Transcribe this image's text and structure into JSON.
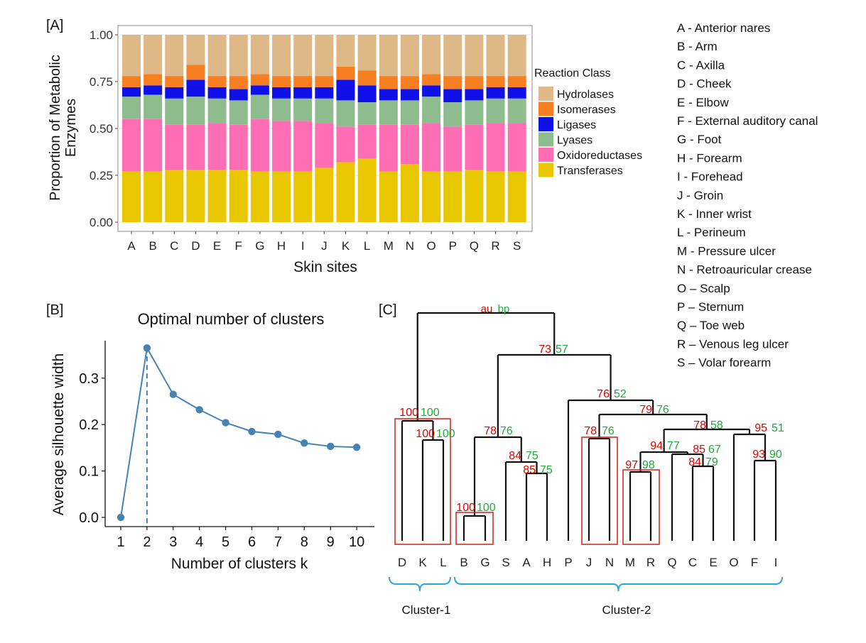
{
  "panels": {
    "A": "[A]",
    "B": "[B]",
    "C": "[C]"
  },
  "chart_data": [
    {
      "type": "bar",
      "stacked": true,
      "panel": "[A]",
      "xlabel": "Skin sites",
      "ylabel": "Proportion of Metabolic Enzymes",
      "ylabel_lines": [
        "Proportion of Metabolic",
        "Enzymes"
      ],
      "ylim": [
        0,
        1
      ],
      "yticks": [
        "0.00",
        "0.25",
        "0.50",
        "0.75",
        "1.00"
      ],
      "categories": [
        "A",
        "B",
        "C",
        "D",
        "E",
        "F",
        "G",
        "H",
        "I",
        "J",
        "K",
        "L",
        "M",
        "N",
        "O",
        "P",
        "Q",
        "R",
        "S"
      ],
      "legend_title": "Reaction Class",
      "legend_position": "right",
      "series": [
        {
          "name": "Transferases",
          "color": "#E8C700",
          "values": [
            0.27,
            0.27,
            0.28,
            0.28,
            0.28,
            0.28,
            0.27,
            0.27,
            0.27,
            0.29,
            0.32,
            0.34,
            0.27,
            0.31,
            0.27,
            0.27,
            0.28,
            0.27,
            0.27
          ]
        },
        {
          "name": "Oxidoreductases",
          "color": "#FF6EB4",
          "values": [
            0.28,
            0.28,
            0.24,
            0.24,
            0.25,
            0.24,
            0.28,
            0.27,
            0.27,
            0.24,
            0.19,
            0.18,
            0.25,
            0.21,
            0.26,
            0.24,
            0.24,
            0.26,
            0.26
          ]
        },
        {
          "name": "Lyases",
          "color": "#8FBC8F",
          "values": [
            0.12,
            0.13,
            0.14,
            0.15,
            0.13,
            0.13,
            0.13,
            0.12,
            0.12,
            0.13,
            0.14,
            0.12,
            0.13,
            0.13,
            0.14,
            0.13,
            0.13,
            0.13,
            0.13
          ]
        },
        {
          "name": "Ligases",
          "color": "#1010E8",
          "values": [
            0.05,
            0.05,
            0.06,
            0.09,
            0.06,
            0.06,
            0.05,
            0.06,
            0.06,
            0.06,
            0.11,
            0.09,
            0.06,
            0.06,
            0.06,
            0.07,
            0.06,
            0.06,
            0.06
          ]
        },
        {
          "name": "Isomerases",
          "color": "#F77E21",
          "values": [
            0.06,
            0.06,
            0.06,
            0.08,
            0.06,
            0.07,
            0.06,
            0.06,
            0.06,
            0.06,
            0.07,
            0.08,
            0.07,
            0.07,
            0.06,
            0.07,
            0.07,
            0.06,
            0.06
          ]
        },
        {
          "name": "Hydrolases",
          "color": "#DEB887",
          "values": [
            0.22,
            0.21,
            0.22,
            0.16,
            0.22,
            0.22,
            0.21,
            0.22,
            0.22,
            0.22,
            0.17,
            0.19,
            0.22,
            0.22,
            0.21,
            0.22,
            0.22,
            0.22,
            0.22
          ]
        }
      ],
      "legend_order": [
        "Hydrolases",
        "Isomerases",
        "Ligases",
        "Lyases",
        "Oxidoreductases",
        "Transferases"
      ],
      "grid": true
    },
    {
      "type": "line",
      "panel": "[B]",
      "title": "Optimal number of clusters",
      "xlabel": "Number of clusters k",
      "ylabel": "Average silhouette width",
      "x": [
        1,
        2,
        3,
        4,
        5,
        6,
        7,
        8,
        9,
        10
      ],
      "y": [
        0.0,
        0.365,
        0.265,
        0.232,
        0.204,
        0.185,
        0.179,
        0.16,
        0.153,
        0.151
      ],
      "xlim": [
        0.6,
        10.4
      ],
      "ylim": [
        -0.015,
        0.385
      ],
      "yticks": [
        "0.0",
        "0.1",
        "0.2",
        "0.3"
      ],
      "xticks": [
        "1",
        "2",
        "3",
        "4",
        "5",
        "6",
        "7",
        "8",
        "9",
        "10"
      ],
      "optimal_k": 2,
      "color": "#4682B4",
      "grid": false
    },
    {
      "type": "dendrogram",
      "panel": "[C]",
      "leaves": [
        "D",
        "K",
        "L",
        "B",
        "G",
        "S",
        "A",
        "H",
        "P",
        "J",
        "N",
        "M",
        "R",
        "Q",
        "C",
        "E",
        "O",
        "F",
        "I"
      ],
      "root_labels": {
        "au": "au",
        "bp": "bp"
      },
      "support_values": [
        {
          "au": "73",
          "bp": "57"
        },
        {
          "au": "76",
          "bp": "52"
        },
        {
          "au": "79",
          "bp": "76"
        },
        {
          "au": "78",
          "bp": "58"
        },
        {
          "au": "95",
          "bp": "51"
        },
        {
          "au": "100",
          "bp": "100"
        },
        {
          "au": "100",
          "bp": "100"
        },
        {
          "au": "78",
          "bp": "76"
        },
        {
          "au": "84",
          "bp": "75"
        },
        {
          "au": "85",
          "bp": "75"
        },
        {
          "au": "78",
          "bp": "76"
        },
        {
          "au": "94",
          "bp": "77"
        },
        {
          "au": "85",
          "bp": "67"
        },
        {
          "au": "84",
          "bp": "79"
        },
        {
          "au": "97",
          "bp": "98"
        },
        {
          "au": "93",
          "bp": "90"
        },
        {
          "au": "100",
          "bp": "100"
        }
      ],
      "clusters": [
        "Cluster-1",
        "Cluster-2"
      ],
      "au_color": "#E00000",
      "bp_color": "#1FAA3A"
    }
  ],
  "site_key": [
    "A - Anterior nares",
    "B - Arm",
    "C - Axilla",
    "D - Cheek",
    "E - Elbow",
    "F - External auditory canal",
    "G - Foot",
    "H - Forearm",
    "I - Forehead",
    "J - Groin",
    "K - Inner wrist",
    "L - Perineum",
    "M - Pressure ulcer",
    "N - Retroauricular crease",
    "O – Scalp",
    "P – Sternum",
    "Q – Toe web",
    "R – Venous leg ulcer",
    "S – Volar forearm"
  ]
}
